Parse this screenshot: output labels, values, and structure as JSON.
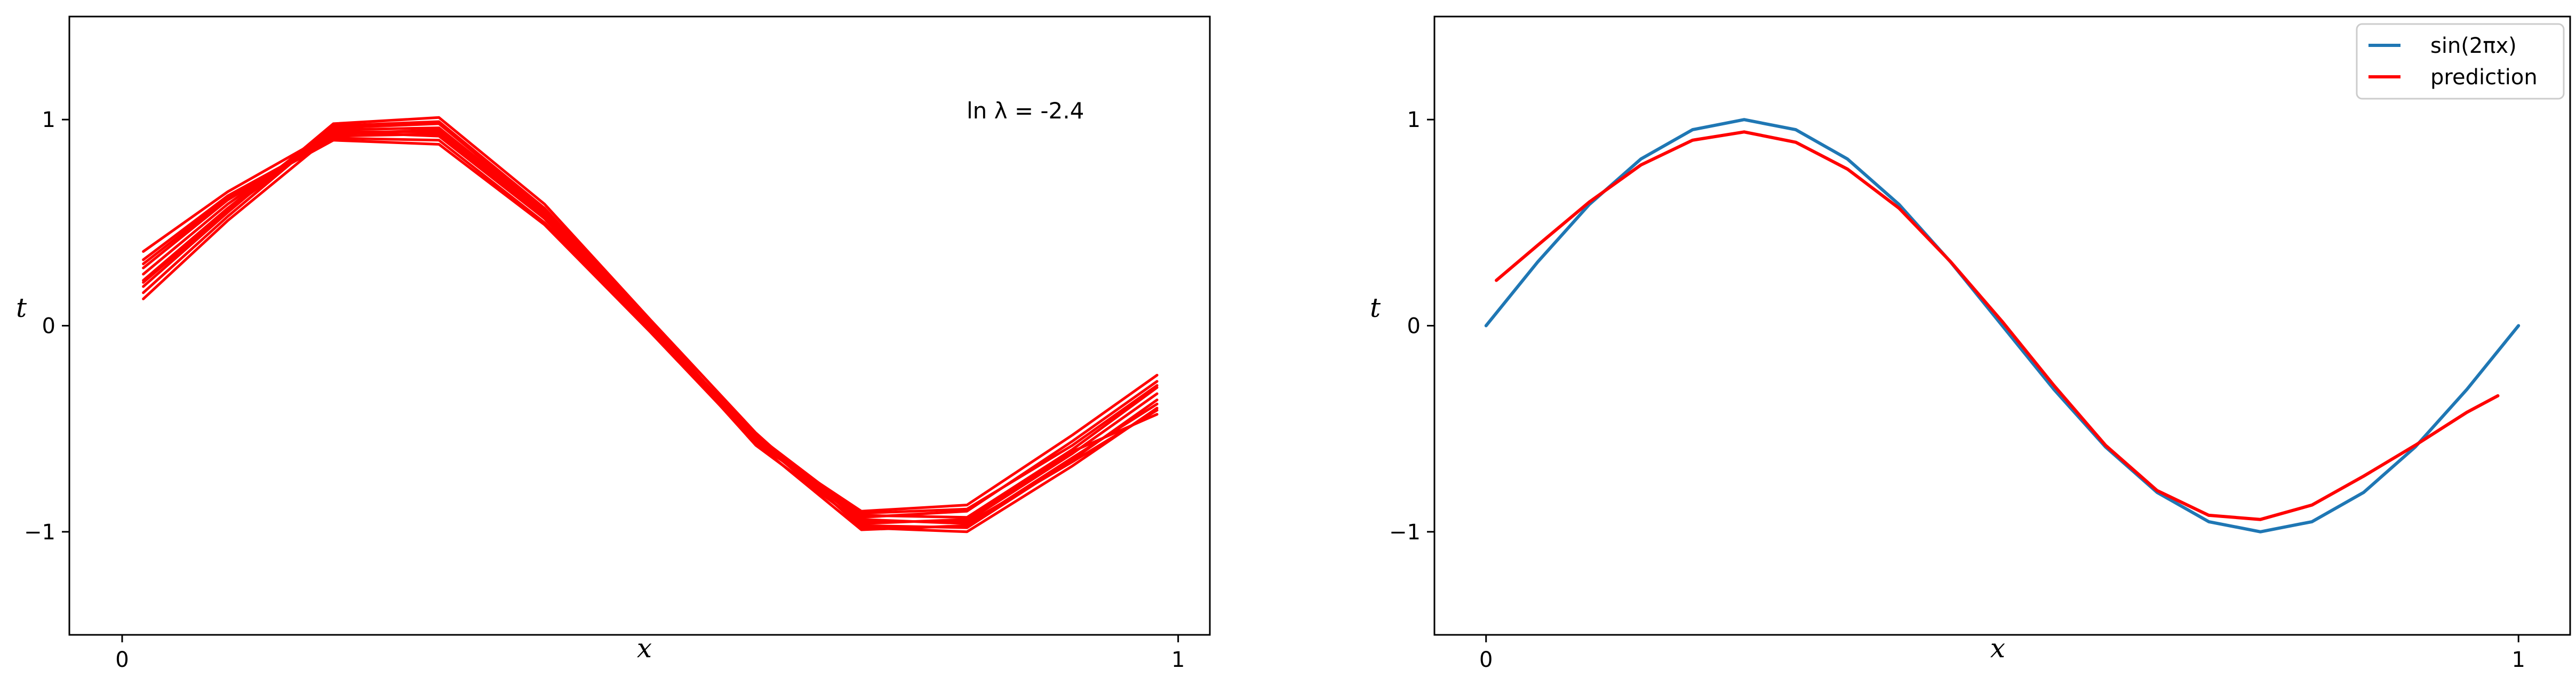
{
  "chart_data": [
    {
      "type": "line",
      "xlabel": "x",
      "ylabel": "t",
      "xlim": [
        -0.05,
        1.03
      ],
      "ylim": [
        -1.5,
        1.5
      ],
      "xticks": [
        0,
        1
      ],
      "xtick_labels": [
        "0",
        "1"
      ],
      "yticks": [
        -1,
        0,
        1
      ],
      "ytick_labels": [
        "−1",
        "0",
        "1"
      ],
      "annotation": "ln λ = -2.4",
      "series_color": "#ff0000",
      "x": [
        0.02,
        0.1,
        0.2,
        0.3,
        0.4,
        0.5,
        0.6,
        0.7,
        0.8,
        0.9,
        0.98
      ],
      "series": [
        {
          "values": [
            0.36,
            0.65,
            0.94,
            0.92,
            0.52,
            -0.02,
            -0.56,
            -0.9,
            -0.87,
            -0.53,
            -0.24
          ]
        },
        {
          "values": [
            0.32,
            0.63,
            0.91,
            0.9,
            0.5,
            -0.01,
            -0.55,
            -0.93,
            -0.9,
            -0.56,
            -0.27
          ]
        },
        {
          "values": [
            0.28,
            0.61,
            0.92,
            0.93,
            0.53,
            0.0,
            -0.53,
            -0.92,
            -0.93,
            -0.6,
            -0.3
          ]
        },
        {
          "values": [
            0.25,
            0.59,
            0.95,
            0.96,
            0.55,
            0.01,
            -0.54,
            -0.95,
            -0.95,
            -0.62,
            -0.33
          ]
        },
        {
          "values": [
            0.22,
            0.57,
            0.97,
            0.99,
            0.57,
            0.02,
            -0.55,
            -0.97,
            -0.98,
            -0.65,
            -0.36
          ]
        },
        {
          "values": [
            0.19,
            0.55,
            0.98,
            1.01,
            0.59,
            0.03,
            -0.52,
            -0.98,
            -1.0,
            -0.68,
            -0.4
          ]
        },
        {
          "values": [
            0.16,
            0.53,
            0.96,
            0.98,
            0.56,
            0.0,
            -0.57,
            -0.99,
            -0.97,
            -0.64,
            -0.38
          ]
        },
        {
          "values": [
            0.13,
            0.51,
            0.93,
            0.95,
            0.54,
            -0.01,
            -0.58,
            -0.96,
            -0.94,
            -0.61,
            -0.43
          ]
        },
        {
          "values": [
            0.3,
            0.62,
            0.9,
            0.88,
            0.49,
            -0.03,
            -0.57,
            -0.91,
            -0.89,
            -0.58,
            -0.29
          ]
        },
        {
          "values": [
            0.21,
            0.56,
            0.94,
            0.94,
            0.52,
            -0.02,
            -0.56,
            -0.94,
            -0.96,
            -0.66,
            -0.41
          ]
        }
      ]
    },
    {
      "type": "line",
      "xlabel": "x",
      "ylabel": "t",
      "xlim": [
        -0.05,
        1.05
      ],
      "ylim": [
        -1.5,
        1.5
      ],
      "xticks": [
        0,
        1
      ],
      "xtick_labels": [
        "0",
        "1"
      ],
      "yticks": [
        -1,
        0,
        1
      ],
      "ytick_labels": [
        "−1",
        "0",
        "1"
      ],
      "legend_position": "upper right",
      "series": [
        {
          "name": "sin(2πx)",
          "color": "#1f77b4",
          "x": [
            0,
            0.05,
            0.1,
            0.15,
            0.2,
            0.25,
            0.3,
            0.35,
            0.4,
            0.45,
            0.5,
            0.55,
            0.6,
            0.65,
            0.7,
            0.75,
            0.8,
            0.85,
            0.9,
            0.95,
            1.0
          ],
          "values": [
            0.0,
            0.309,
            0.588,
            0.809,
            0.951,
            1.0,
            0.951,
            0.809,
            0.588,
            0.309,
            0.0,
            -0.309,
            -0.588,
            -0.809,
            -0.951,
            -1.0,
            -0.951,
            -0.809,
            -0.588,
            -0.309,
            0.0
          ]
        },
        {
          "name": "prediction",
          "color": "#ff0000",
          "x": [
            0.01,
            0.05,
            0.1,
            0.15,
            0.2,
            0.25,
            0.3,
            0.35,
            0.4,
            0.45,
            0.5,
            0.55,
            0.6,
            0.65,
            0.7,
            0.75,
            0.8,
            0.85,
            0.9,
            0.95,
            0.98
          ],
          "values": [
            0.22,
            0.39,
            0.6,
            0.78,
            0.9,
            0.94,
            0.89,
            0.76,
            0.57,
            0.31,
            0.02,
            -0.29,
            -0.58,
            -0.8,
            -0.92,
            -0.94,
            -0.87,
            -0.73,
            -0.58,
            -0.42,
            -0.34
          ]
        }
      ]
    }
  ]
}
